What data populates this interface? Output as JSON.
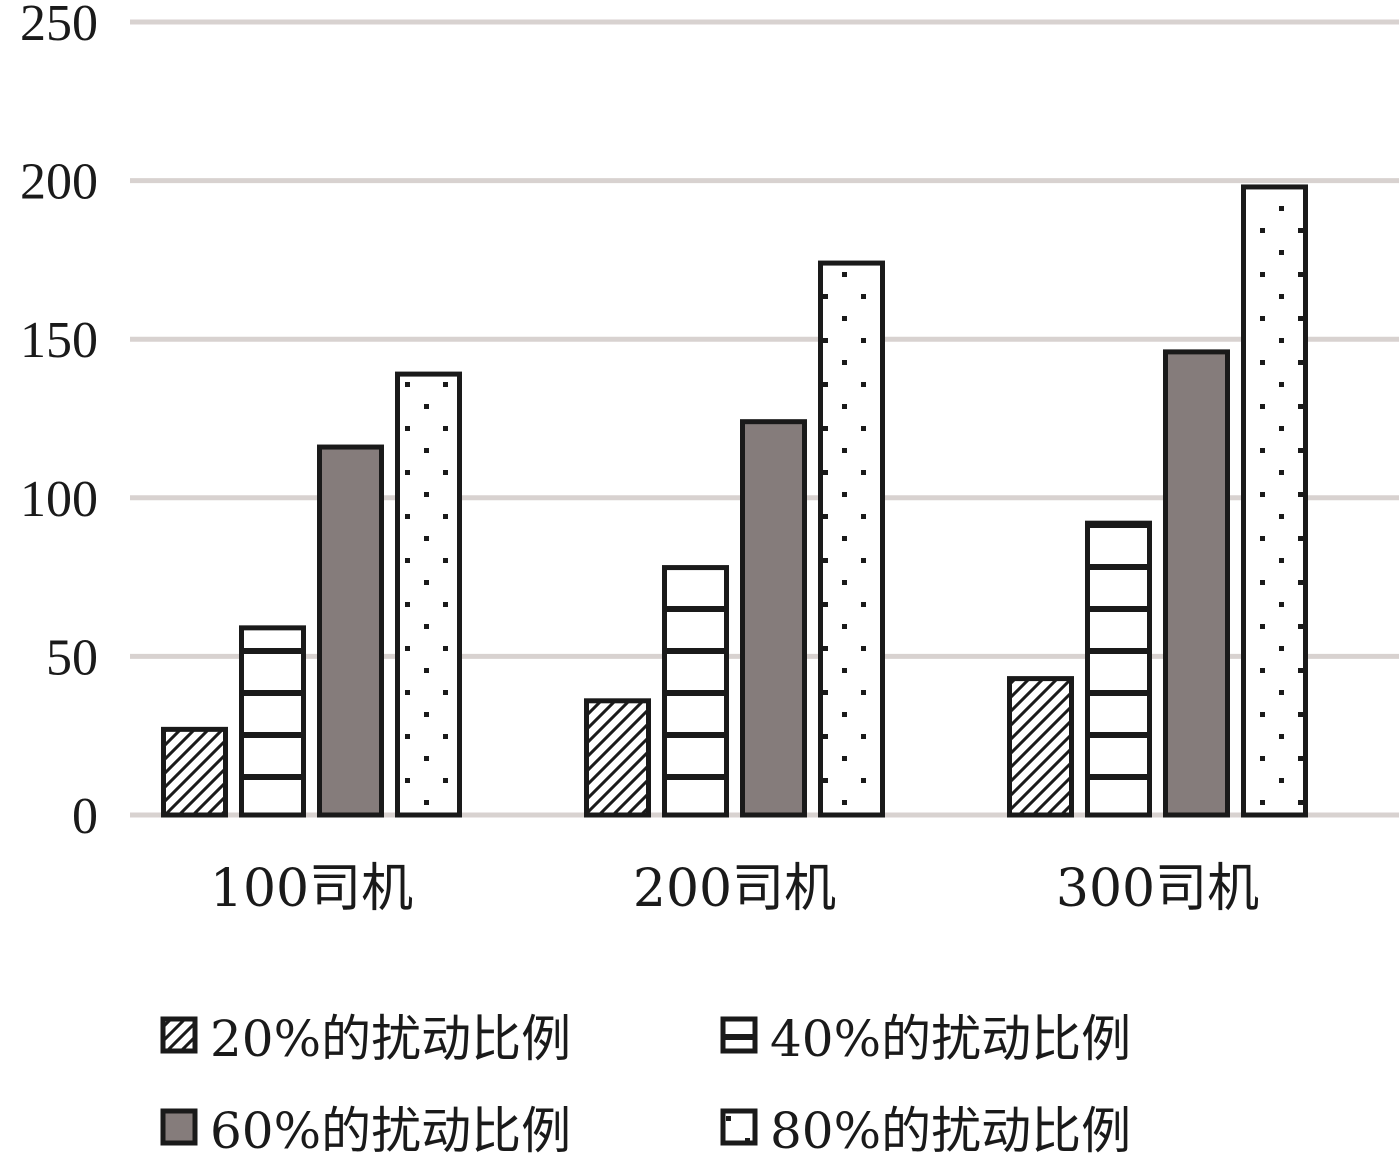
{
  "chart_data": {
    "type": "bar",
    "categories": [
      "100司机",
      "200司机",
      "300司机"
    ],
    "series": [
      {
        "name": "20%的扰动比例",
        "values": [
          27,
          36,
          43
        ],
        "pattern": "diagonal",
        "color": "#ffffff"
      },
      {
        "name": "40%的扰动比例",
        "values": [
          59,
          78,
          92
        ],
        "pattern": "horizontal",
        "color": "#ffffff"
      },
      {
        "name": "60%的扰动比例",
        "values": [
          116,
          124,
          146
        ],
        "pattern": "solid",
        "color": "#857c7b"
      },
      {
        "name": "80%的扰动比例",
        "values": [
          139,
          174,
          198
        ],
        "pattern": "dots",
        "color": "#ffffff"
      }
    ],
    "yticks": [
      "0",
      "50",
      "100",
      "150",
      "200",
      "250"
    ],
    "ylim": [
      0,
      250
    ],
    "grid": true,
    "legend_position": "bottom",
    "colors": {
      "grid": "#d8d2d0",
      "outline": "#1a1a1a",
      "solid_fill": "#857c7b"
    }
  }
}
